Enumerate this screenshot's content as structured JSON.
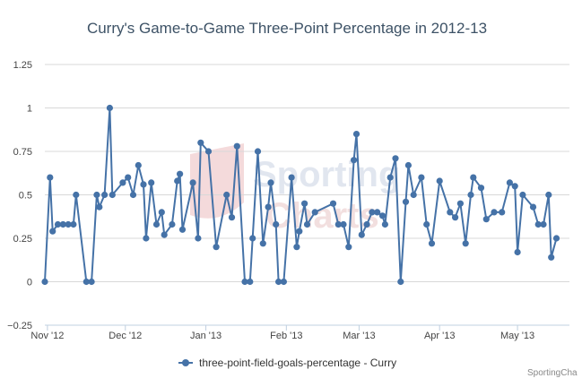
{
  "chart_data": {
    "type": "line",
    "title": "Curry's Game-to-Game Three-Point Percentage in 2012-13",
    "xlabel": "",
    "ylabel": "",
    "xlim": [
      "2012-10-31",
      "2013-05-21"
    ],
    "ylim": [
      -0.25,
      1.25
    ],
    "y_ticks": [
      -0.25,
      0,
      0.25,
      0.5,
      0.75,
      1,
      1.25
    ],
    "y_tick_labels": [
      "−0.25",
      "0",
      "0.25",
      "0.5",
      "0.75",
      "1",
      "1.25"
    ],
    "x_ticks": [
      "2012-11-01",
      "2012-12-01",
      "2013-01-01",
      "2013-02-01",
      "2013-03-01",
      "2013-04-01",
      "2013-05-01"
    ],
    "x_tick_labels": [
      "Nov '12",
      "Dec '12",
      "Jan '13",
      "Feb '13",
      "Mar '13",
      "Apr '13",
      "May '13"
    ],
    "grid": true,
    "legend": "bottom-center",
    "series": [
      {
        "name": "three-point-field-goals-percentage - Curry",
        "color": "#4572a7",
        "points": [
          [
            "2012-10-31",
            0.0
          ],
          [
            "2012-11-02",
            0.6
          ],
          [
            "2012-11-03",
            0.29
          ],
          [
            "2012-11-05",
            0.33
          ],
          [
            "2012-11-07",
            0.33
          ],
          [
            "2012-11-09",
            0.33
          ],
          [
            "2012-11-11",
            0.33
          ],
          [
            "2012-11-12",
            0.5
          ],
          [
            "2012-11-16",
            0.0
          ],
          [
            "2012-11-18",
            0.0
          ],
          [
            "2012-11-20",
            0.5
          ],
          [
            "2012-11-21",
            0.43
          ],
          [
            "2012-11-23",
            0.5
          ],
          [
            "2012-11-25",
            1.0
          ],
          [
            "2012-11-26",
            0.5
          ],
          [
            "2012-11-30",
            0.57
          ],
          [
            "2012-12-02",
            0.6
          ],
          [
            "2012-12-04",
            0.5
          ],
          [
            "2012-12-06",
            0.67
          ],
          [
            "2012-12-08",
            0.56
          ],
          [
            "2012-12-09",
            0.25
          ],
          [
            "2012-12-11",
            0.57
          ],
          [
            "2012-12-13",
            0.33
          ],
          [
            "2012-12-15",
            0.4
          ],
          [
            "2012-12-16",
            0.27
          ],
          [
            "2012-12-19",
            0.33
          ],
          [
            "2012-12-21",
            0.58
          ],
          [
            "2012-12-22",
            0.62
          ],
          [
            "2012-12-23",
            0.3
          ],
          [
            "2012-12-27",
            0.57
          ],
          [
            "2012-12-29",
            0.25
          ],
          [
            "2012-12-30",
            0.8
          ],
          [
            "2013-01-02",
            0.75
          ],
          [
            "2013-01-05",
            0.2
          ],
          [
            "2013-01-09",
            0.5
          ],
          [
            "2013-01-11",
            0.37
          ],
          [
            "2013-01-13",
            0.78
          ],
          [
            "2013-01-16",
            0.0
          ],
          [
            "2013-01-18",
            0.0
          ],
          [
            "2013-01-19",
            0.25
          ],
          [
            "2013-01-21",
            0.75
          ],
          [
            "2013-01-23",
            0.22
          ],
          [
            "2013-01-25",
            0.43
          ],
          [
            "2013-01-26",
            0.57
          ],
          [
            "2013-01-28",
            0.33
          ],
          [
            "2013-01-29",
            0.0
          ],
          [
            "2013-01-31",
            0.0
          ],
          [
            "2013-02-03",
            0.6
          ],
          [
            "2013-02-05",
            0.2
          ],
          [
            "2013-02-06",
            0.29
          ],
          [
            "2013-02-08",
            0.45
          ],
          [
            "2013-02-09",
            0.33
          ],
          [
            "2013-02-12",
            0.4
          ],
          [
            "2013-02-19",
            0.45
          ],
          [
            "2013-02-21",
            0.33
          ],
          [
            "2013-02-23",
            0.33
          ],
          [
            "2013-02-25",
            0.2
          ],
          [
            "2013-02-27",
            0.7
          ],
          [
            "2013-02-28",
            0.85
          ],
          [
            "2013-03-02",
            0.27
          ],
          [
            "2013-03-04",
            0.33
          ],
          [
            "2013-03-06",
            0.4
          ],
          [
            "2013-03-08",
            0.4
          ],
          [
            "2013-03-10",
            0.38
          ],
          [
            "2013-03-11",
            0.33
          ],
          [
            "2013-03-13",
            0.6
          ],
          [
            "2013-03-15",
            0.71
          ],
          [
            "2013-03-17",
            0.0
          ],
          [
            "2013-03-19",
            0.46
          ],
          [
            "2013-03-20",
            0.67
          ],
          [
            "2013-03-22",
            0.5
          ],
          [
            "2013-03-25",
            0.6
          ],
          [
            "2013-03-27",
            0.33
          ],
          [
            "2013-03-29",
            0.22
          ],
          [
            "2013-04-01",
            0.58
          ],
          [
            "2013-04-05",
            0.4
          ],
          [
            "2013-04-07",
            0.37
          ],
          [
            "2013-04-09",
            0.45
          ],
          [
            "2013-04-11",
            0.22
          ],
          [
            "2013-04-13",
            0.5
          ],
          [
            "2013-04-14",
            0.6
          ],
          [
            "2013-04-17",
            0.54
          ],
          [
            "2013-04-19",
            0.36
          ],
          [
            "2013-04-22",
            0.4
          ],
          [
            "2013-04-25",
            0.4
          ],
          [
            "2013-04-28",
            0.57
          ],
          [
            "2013-04-30",
            0.55
          ],
          [
            "2013-05-01",
            0.17
          ],
          [
            "2013-05-03",
            0.5
          ],
          [
            "2013-05-07",
            0.43
          ],
          [
            "2013-05-09",
            0.33
          ],
          [
            "2013-05-11",
            0.33
          ],
          [
            "2013-05-13",
            0.5
          ],
          [
            "2013-05-14",
            0.14
          ],
          [
            "2013-05-16",
            0.25
          ]
        ]
      }
    ]
  },
  "watermark": {
    "line1": "Sporting",
    "line2": "Charts"
  },
  "credit": "SportingCha"
}
